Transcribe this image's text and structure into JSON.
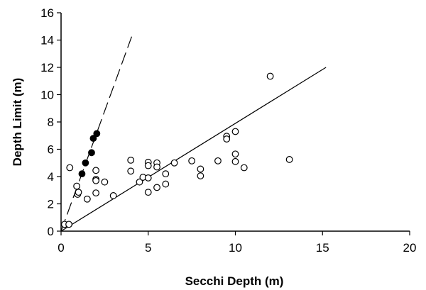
{
  "chart_data": {
    "type": "scatter",
    "title": "",
    "xlabel": "Secchi Depth (m)",
    "ylabel": "Depth Limit (m)",
    "xlim": [
      0,
      20
    ],
    "ylim": [
      0,
      16
    ],
    "xticks": [
      0,
      5,
      10,
      15,
      20
    ],
    "yticks": [
      0,
      2,
      4,
      6,
      8,
      10,
      12,
      14,
      16
    ],
    "grid": false,
    "legend": "none",
    "series": [
      {
        "marker": "open-circle",
        "points": [
          [
            0.2,
            0.5
          ],
          [
            0.45,
            0.5
          ],
          [
            0.5,
            4.65
          ],
          [
            0.9,
            3.3
          ],
          [
            0.95,
            2.7
          ],
          [
            1.0,
            2.85
          ],
          [
            1.5,
            2.35
          ],
          [
            2.0,
            4.45
          ],
          [
            2.0,
            3.8
          ],
          [
            2.0,
            3.7
          ],
          [
            2.0,
            2.8
          ],
          [
            2.5,
            3.6
          ],
          [
            3.0,
            2.6
          ],
          [
            4.0,
            5.2
          ],
          [
            4.0,
            4.4
          ],
          [
            4.5,
            3.6
          ],
          [
            4.7,
            3.95
          ],
          [
            5.0,
            5.05
          ],
          [
            5.0,
            4.8
          ],
          [
            5.0,
            3.9
          ],
          [
            5.0,
            2.85
          ],
          [
            5.5,
            5.0
          ],
          [
            5.5,
            4.7
          ],
          [
            5.5,
            3.2
          ],
          [
            6.0,
            4.2
          ],
          [
            6.0,
            3.45
          ],
          [
            6.5,
            5.0
          ],
          [
            7.5,
            5.15
          ],
          [
            8.0,
            4.55
          ],
          [
            8.0,
            4.05
          ],
          [
            9.0,
            5.15
          ],
          [
            9.5,
            6.95
          ],
          [
            9.5,
            6.75
          ],
          [
            10.0,
            7.3
          ],
          [
            10.0,
            5.65
          ],
          [
            10.0,
            5.1
          ],
          [
            10.5,
            4.65
          ],
          [
            12.0,
            11.35
          ],
          [
            13.1,
            5.25
          ]
        ]
      },
      {
        "marker": "filled-circle",
        "points": [
          [
            1.2,
            4.2
          ],
          [
            1.4,
            5.0
          ],
          [
            1.75,
            5.75
          ],
          [
            1.85,
            6.8
          ],
          [
            2.05,
            7.15
          ]
        ]
      }
    ],
    "lines": [
      {
        "style": "solid",
        "x": [
          0,
          15.2
        ],
        "y": [
          0,
          12.0
        ]
      },
      {
        "style": "dashed",
        "x": [
          0,
          4.05
        ],
        "y": [
          0,
          14.25
        ]
      }
    ]
  }
}
